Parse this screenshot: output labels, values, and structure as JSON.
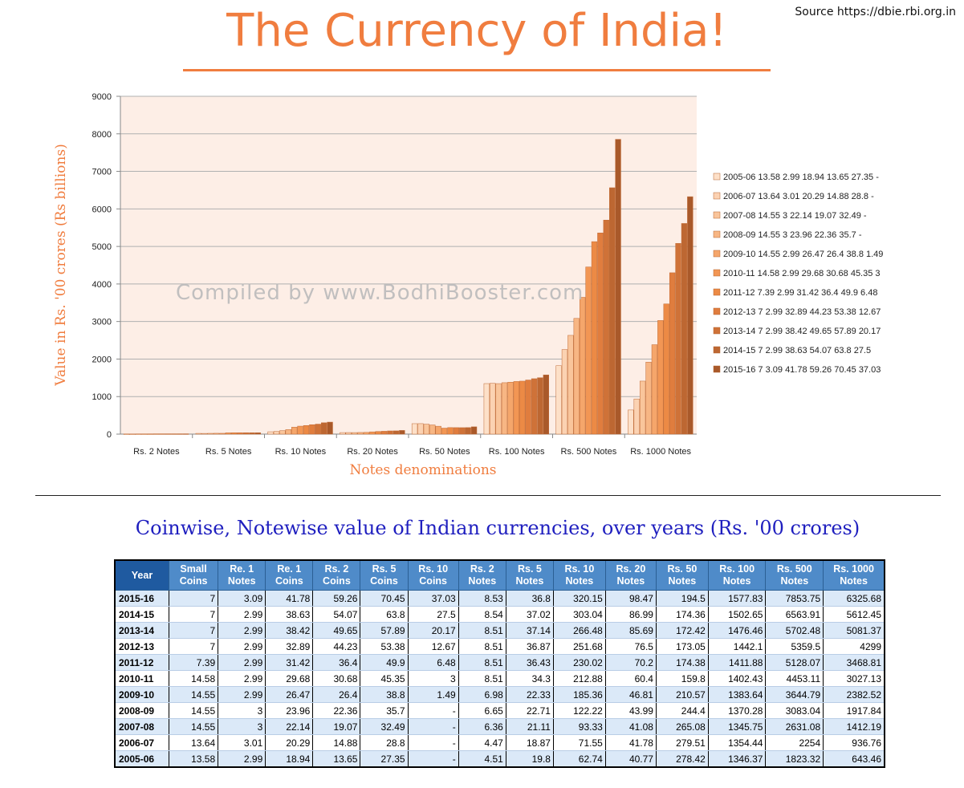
{
  "source": "Source https://dbie.rbi.org.in",
  "title": "The Currency of India!",
  "watermark": "Compiled by www.BodhiBooster.com",
  "chart_data": {
    "type": "bar",
    "title": "",
    "xlabel": "Notes denominations",
    "ylabel": "Value in Rs. '00 crores (Rs billions)",
    "ylim": [
      0,
      9000
    ],
    "yticks": [
      0,
      1000,
      2000,
      3000,
      4000,
      5000,
      6000,
      7000,
      8000,
      9000
    ],
    "grid": true,
    "legend_position": "right",
    "categories": [
      "Rs. 2 Notes",
      "Rs. 5 Notes",
      "Rs. 10 Notes",
      "Rs. 20 Notes",
      "Rs. 50 Notes",
      "Rs. 100 Notes",
      "Rs. 500 Notes",
      "Rs. 1000 Notes"
    ],
    "series": [
      {
        "name": "2005-06",
        "legend": "2005-06   13.58 2.99 18.94 13.65 27.35 -",
        "color": "#fde0c8",
        "values": [
          4.51,
          19.8,
          62.74,
          40.77,
          278.42,
          1346.37,
          1823.32,
          643.46
        ]
      },
      {
        "name": "2006-07",
        "legend": "2006-07   13.64 3.01 20.29 14.88 28.8 -",
        "color": "#fbd2b2",
        "values": [
          4.47,
          18.87,
          71.55,
          41.78,
          279.51,
          1354.44,
          2254,
          936.76
        ]
      },
      {
        "name": "2007-08",
        "legend": "2007-08   14.55 3 22.14 19.07 32.49 -",
        "color": "#f9c59b",
        "values": [
          6.36,
          21.11,
          93.33,
          41.08,
          265.08,
          1345.75,
          2631.08,
          1412.19
        ]
      },
      {
        "name": "2008-09",
        "legend": "2008-09   14.55 3 23.96 22.36 35.7 -",
        "color": "#f7b684",
        "values": [
          6.65,
          22.71,
          122.22,
          43.99,
          244.4,
          1370.28,
          3083.04,
          1917.84
        ]
      },
      {
        "name": "2009-10",
        "legend": "2009-10   14.55 2.99 26.47 26.4 38.8 1.49",
        "color": "#f5a66b",
        "values": [
          6.98,
          22.33,
          185.36,
          46.81,
          210.57,
          1383.64,
          3644.79,
          2382.52
        ]
      },
      {
        "name": "2010-11",
        "legend": "2010-11   14.58 2.99 29.68 30.68 45.35 3",
        "color": "#f29654",
        "values": [
          8.51,
          34.3,
          212.88,
          60.4,
          159.8,
          1402.43,
          4453.11,
          3027.13
        ]
      },
      {
        "name": "2011-12",
        "legend": "2011-12   7.39 2.99 31.42 36.4 49.9 6.48",
        "color": "#ec8a45",
        "values": [
          8.51,
          36.43,
          230.02,
          70.2,
          174.38,
          1411.88,
          5128.07,
          3468.81
        ]
      },
      {
        "name": "2012-13",
        "legend": "2012-13   7 2.99 32.89 44.23 53.38 12.67",
        "color": "#e07d3e",
        "values": [
          8.51,
          36.87,
          251.68,
          76.5,
          173.05,
          1442.1,
          5359.5,
          4299
        ]
      },
      {
        "name": "2013-14",
        "legend": "2013-14   7 2.99 38.42 49.65 57.89 20.17",
        "color": "#cf7238",
        "values": [
          8.51,
          37.14,
          266.48,
          85.69,
          172.42,
          1476.46,
          5702.48,
          5081.37
        ]
      },
      {
        "name": "2014-15",
        "legend": "2014-15   7 2.99 38.63 54.07 63.8 27.5",
        "color": "#bd6732",
        "values": [
          8.54,
          37.02,
          303.04,
          86.99,
          174.36,
          1502.65,
          6563.91,
          5612.45
        ]
      },
      {
        "name": "2015-16",
        "legend": "2015-16   7 3.09 41.78 59.26 70.45 37.03",
        "color": "#a9592a",
        "values": [
          8.53,
          36.8,
          320.15,
          98.47,
          194.5,
          1577.83,
          7853.75,
          6325.68
        ]
      }
    ]
  },
  "table": {
    "title": "Coinwise, Notewise value of Indian currencies, over years (Rs. '00 crores)",
    "headers": [
      "Year",
      "Small Coins",
      "Re. 1 Notes",
      "Re. 1 Coins",
      "Rs. 2 Coins",
      "Rs. 5 Coins",
      "Rs. 10 Coins",
      "Rs. 2 Notes",
      "Rs. 5 Notes",
      "Rs. 10 Notes",
      "Rs. 20 Notes",
      "Rs. 50 Notes",
      "Rs. 100 Notes",
      "Rs. 500 Notes",
      "Rs. 1000 Notes"
    ],
    "rows": [
      [
        "2015-16",
        "7",
        "3.09",
        "41.78",
        "59.26",
        "70.45",
        "37.03",
        "8.53",
        "36.8",
        "320.15",
        "98.47",
        "194.5",
        "1577.83",
        "7853.75",
        "6325.68"
      ],
      [
        "2014-15",
        "7",
        "2.99",
        "38.63",
        "54.07",
        "63.8",
        "27.5",
        "8.54",
        "37.02",
        "303.04",
        "86.99",
        "174.36",
        "1502.65",
        "6563.91",
        "5612.45"
      ],
      [
        "2013-14",
        "7",
        "2.99",
        "38.42",
        "49.65",
        "57.89",
        "20.17",
        "8.51",
        "37.14",
        "266.48",
        "85.69",
        "172.42",
        "1476.46",
        "5702.48",
        "5081.37"
      ],
      [
        "2012-13",
        "7",
        "2.99",
        "32.89",
        "44.23",
        "53.38",
        "12.67",
        "8.51",
        "36.87",
        "251.68",
        "76.5",
        "173.05",
        "1442.1",
        "5359.5",
        "4299"
      ],
      [
        "2011-12",
        "7.39",
        "2.99",
        "31.42",
        "36.4",
        "49.9",
        "6.48",
        "8.51",
        "36.43",
        "230.02",
        "70.2",
        "174.38",
        "1411.88",
        "5128.07",
        "3468.81"
      ],
      [
        "2010-11",
        "14.58",
        "2.99",
        "29.68",
        "30.68",
        "45.35",
        "3",
        "8.51",
        "34.3",
        "212.88",
        "60.4",
        "159.8",
        "1402.43",
        "4453.11",
        "3027.13"
      ],
      [
        "2009-10",
        "14.55",
        "2.99",
        "26.47",
        "26.4",
        "38.8",
        "1.49",
        "6.98",
        "22.33",
        "185.36",
        "46.81",
        "210.57",
        "1383.64",
        "3644.79",
        "2382.52"
      ],
      [
        "2008-09",
        "14.55",
        "3",
        "23.96",
        "22.36",
        "35.7",
        "-",
        "6.65",
        "22.71",
        "122.22",
        "43.99",
        "244.4",
        "1370.28",
        "3083.04",
        "1917.84"
      ],
      [
        "2007-08",
        "14.55",
        "3",
        "22.14",
        "19.07",
        "32.49",
        "-",
        "6.36",
        "21.11",
        "93.33",
        "41.08",
        "265.08",
        "1345.75",
        "2631.08",
        "1412.19"
      ],
      [
        "2006-07",
        "13.64",
        "3.01",
        "20.29",
        "14.88",
        "28.8",
        "-",
        "4.47",
        "18.87",
        "71.55",
        "41.78",
        "279.51",
        "1354.44",
        "2254",
        "936.76"
      ],
      [
        "2005-06",
        "13.58",
        "2.99",
        "18.94",
        "13.65",
        "27.35",
        "-",
        "4.51",
        "19.8",
        "62.74",
        "40.77",
        "278.42",
        "1346.37",
        "1823.32",
        "643.46"
      ]
    ]
  }
}
